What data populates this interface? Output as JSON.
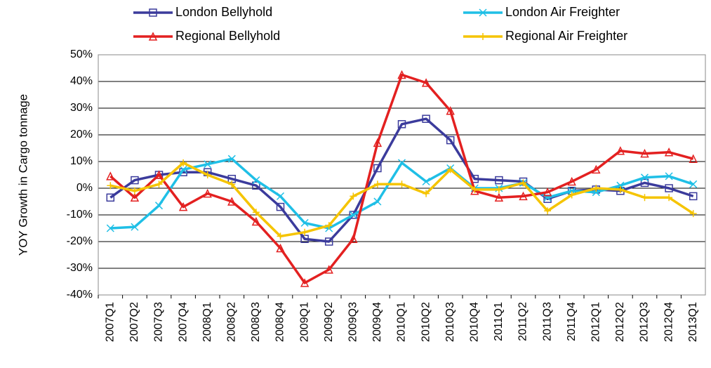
{
  "chart_data": {
    "type": "line",
    "y_label": "YOY Growth in Cargo tonnage",
    "categories": [
      "2007Q1",
      "2007Q2",
      "2007Q3",
      "2007Q4",
      "2008Q1",
      "2008Q2",
      "2008Q3",
      "2008Q4",
      "2009Q1",
      "2009Q2",
      "2009Q3",
      "2009Q4",
      "2010Q1",
      "2010Q2",
      "2010Q3",
      "2010Q4",
      "2011Q1",
      "2011Q2",
      "2011Q3",
      "2011Q4",
      "2012Q1",
      "2012Q2",
      "2012Q3",
      "2012Q4",
      "2013Q1"
    ],
    "series": [
      {
        "name": "London Bellyhold",
        "color": "#3b3b9c",
        "marker": "square",
        "values": [
          -3.5,
          3,
          5,
          6,
          6,
          3.5,
          1,
          -7,
          -19,
          -20,
          -10,
          7.5,
          24,
          26,
          18,
          3.5,
          3,
          2.5,
          -4,
          -1,
          -0.5,
          -1,
          2,
          0,
          -3
        ]
      },
      {
        "name": "London Air Freighter",
        "color": "#1fbfe6",
        "marker": "x",
        "values": [
          -15,
          -14.5,
          -6.5,
          7,
          9,
          11,
          3,
          -3,
          -13,
          -15,
          -10,
          -5,
          9.5,
          2.5,
          7.5,
          0,
          0,
          2,
          -3.5,
          -1,
          -1.5,
          1,
          4,
          4.5,
          1.5
        ]
      },
      {
        "name": "Regional Bellyhold",
        "color": "#e32020",
        "marker": "triangle",
        "values": [
          4.5,
          -3.5,
          5,
          -7,
          -2,
          -5,
          -12.5,
          -22.5,
          -35.5,
          -30.5,
          -19,
          17,
          42.5,
          39.5,
          29,
          -1,
          -3.5,
          -3,
          -1.5,
          2.5,
          7,
          14,
          13,
          13.5,
          11
        ]
      },
      {
        "name": "Regional Air Freighter",
        "color": "#f5c400",
        "marker": "plus",
        "values": [
          1,
          -1,
          1.5,
          9.5,
          5,
          1.5,
          -9,
          -18,
          -16.5,
          -14,
          -3,
          1.5,
          1.5,
          -2,
          7,
          -0.5,
          -0.5,
          2,
          -8.5,
          -2.5,
          0,
          -0.5,
          -3.5,
          -3.5,
          -9.5
        ]
      }
    ],
    "ylim": [
      -40,
      50
    ],
    "yticks": [
      {
        "value": -40,
        "label": "-40%"
      },
      {
        "value": -30,
        "label": "-30%"
      },
      {
        "value": -20,
        "label": "-20%"
      },
      {
        "value": -10,
        "label": "-10%"
      },
      {
        "value": 0,
        "label": "0%"
      },
      {
        "value": 10,
        "label": "10%"
      },
      {
        "value": 20,
        "label": "20%"
      },
      {
        "value": 30,
        "label": "30%"
      },
      {
        "value": 40,
        "label": "40%"
      },
      {
        "value": 50,
        "label": "50%"
      }
    ],
    "grid": true
  }
}
